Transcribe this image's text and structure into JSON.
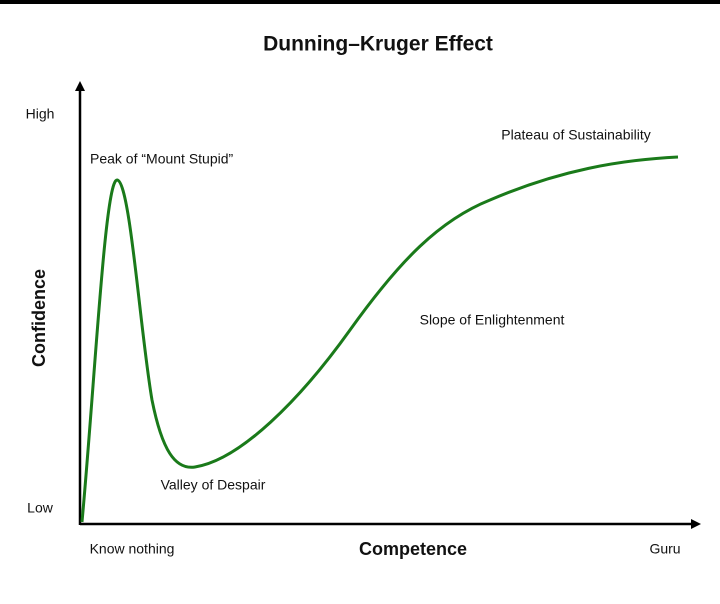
{
  "title": "Dunning–Kruger Effect",
  "axes": {
    "y_label": "Confidence",
    "y_high": "High",
    "y_low": "Low",
    "x_label": "Competence",
    "x_start": "Know nothing",
    "x_end": "Guru"
  },
  "annotations": [
    "Peak of “Mount Stupid”",
    "Valley of Despair",
    "Slope of Enlightenment",
    "Plateau of Sustainability"
  ]
}
